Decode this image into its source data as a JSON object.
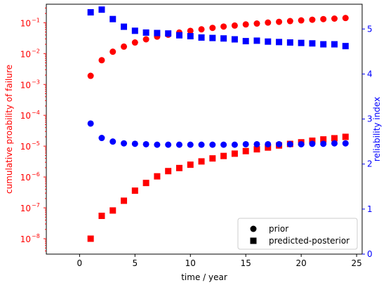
{
  "chart_data": {
    "type": "scatter",
    "xlabel": "time / year",
    "ylabel_left": "cumulative proability of failure",
    "ylabel_right": "reliability index",
    "xlim": [
      -3,
      25.5
    ],
    "ylim_left_log10": [
      -8.5,
      -0.4
    ],
    "ylim_right": [
      0,
      5.55
    ],
    "x_ticks": [
      0,
      5,
      10,
      15,
      20,
      25
    ],
    "left_ticks": [
      {
        "exp": -1,
        "label": "10",
        "sup": "−1"
      },
      {
        "exp": -2,
        "label": "10",
        "sup": "−2"
      },
      {
        "exp": -3,
        "label": "10",
        "sup": "−3"
      },
      {
        "exp": -4,
        "label": "10",
        "sup": "−4"
      },
      {
        "exp": -5,
        "label": "10",
        "sup": "−5"
      },
      {
        "exp": -6,
        "label": "10",
        "sup": "−6"
      },
      {
        "exp": -7,
        "label": "10",
        "sup": "−7"
      },
      {
        "exp": -8,
        "label": "10",
        "sup": "−8"
      }
    ],
    "right_ticks": [
      0,
      1,
      2,
      3,
      4,
      5
    ],
    "left_color": "#ff0000",
    "right_color": "#0000ff",
    "legend_position": "lower-right",
    "legend": [
      {
        "label": "prior",
        "marker": "circle"
      },
      {
        "label": "predicted-posterior",
        "marker": "square"
      }
    ],
    "x": [
      1,
      2,
      3,
      4,
      5,
      6,
      7,
      8,
      9,
      10,
      11,
      12,
      13,
      14,
      15,
      16,
      17,
      18,
      19,
      20,
      21,
      22,
      23,
      24
    ],
    "series": [
      {
        "name": "prior",
        "axis": "left",
        "color": "#ff0000",
        "marker": "circle",
        "values": [
          0.0019,
          0.0061,
          0.0115,
          0.0168,
          0.0229,
          0.029,
          0.0355,
          0.041,
          0.048,
          0.0545,
          0.061,
          0.068,
          0.075,
          0.081,
          0.088,
          0.094,
          0.101,
          0.107,
          0.113,
          0.119,
          0.125,
          0.131,
          0.136,
          0.142
        ]
      },
      {
        "name": "predicted-posterior",
        "axis": "left",
        "color": "#ff0000",
        "marker": "square",
        "values": [
          1e-08,
          5.5e-08,
          8.2e-08,
          1.7e-07,
          3.6e-07,
          6.4e-07,
          1.05e-06,
          1.55e-06,
          1.95e-06,
          2.5e-06,
          3.2e-06,
          4e-06,
          4.8e-06,
          5.7e-06,
          6.9e-06,
          7.9e-06,
          9e-06,
          1.05e-05,
          1.18e-05,
          1.33e-05,
          1.5e-05,
          1.65e-05,
          1.8e-05,
          2e-05
        ]
      },
      {
        "name": "prior",
        "axis": "right",
        "color": "#0000ff",
        "marker": "circle",
        "values": [
          2.9,
          2.58,
          2.5,
          2.46,
          2.45,
          2.44,
          2.43,
          2.43,
          2.43,
          2.43,
          2.43,
          2.43,
          2.43,
          2.43,
          2.44,
          2.44,
          2.44,
          2.44,
          2.44,
          2.44,
          2.45,
          2.45,
          2.46,
          2.46
        ]
      },
      {
        "name": "predicted-posterior",
        "axis": "right",
        "color": "#0000ff",
        "marker": "square",
        "values": [
          5.37,
          5.43,
          5.22,
          5.05,
          4.96,
          4.92,
          4.91,
          4.9,
          4.86,
          4.84,
          4.81,
          4.8,
          4.79,
          4.77,
          4.73,
          4.74,
          4.72,
          4.71,
          4.7,
          4.69,
          4.68,
          4.66,
          4.66,
          4.62
        ]
      }
    ]
  }
}
